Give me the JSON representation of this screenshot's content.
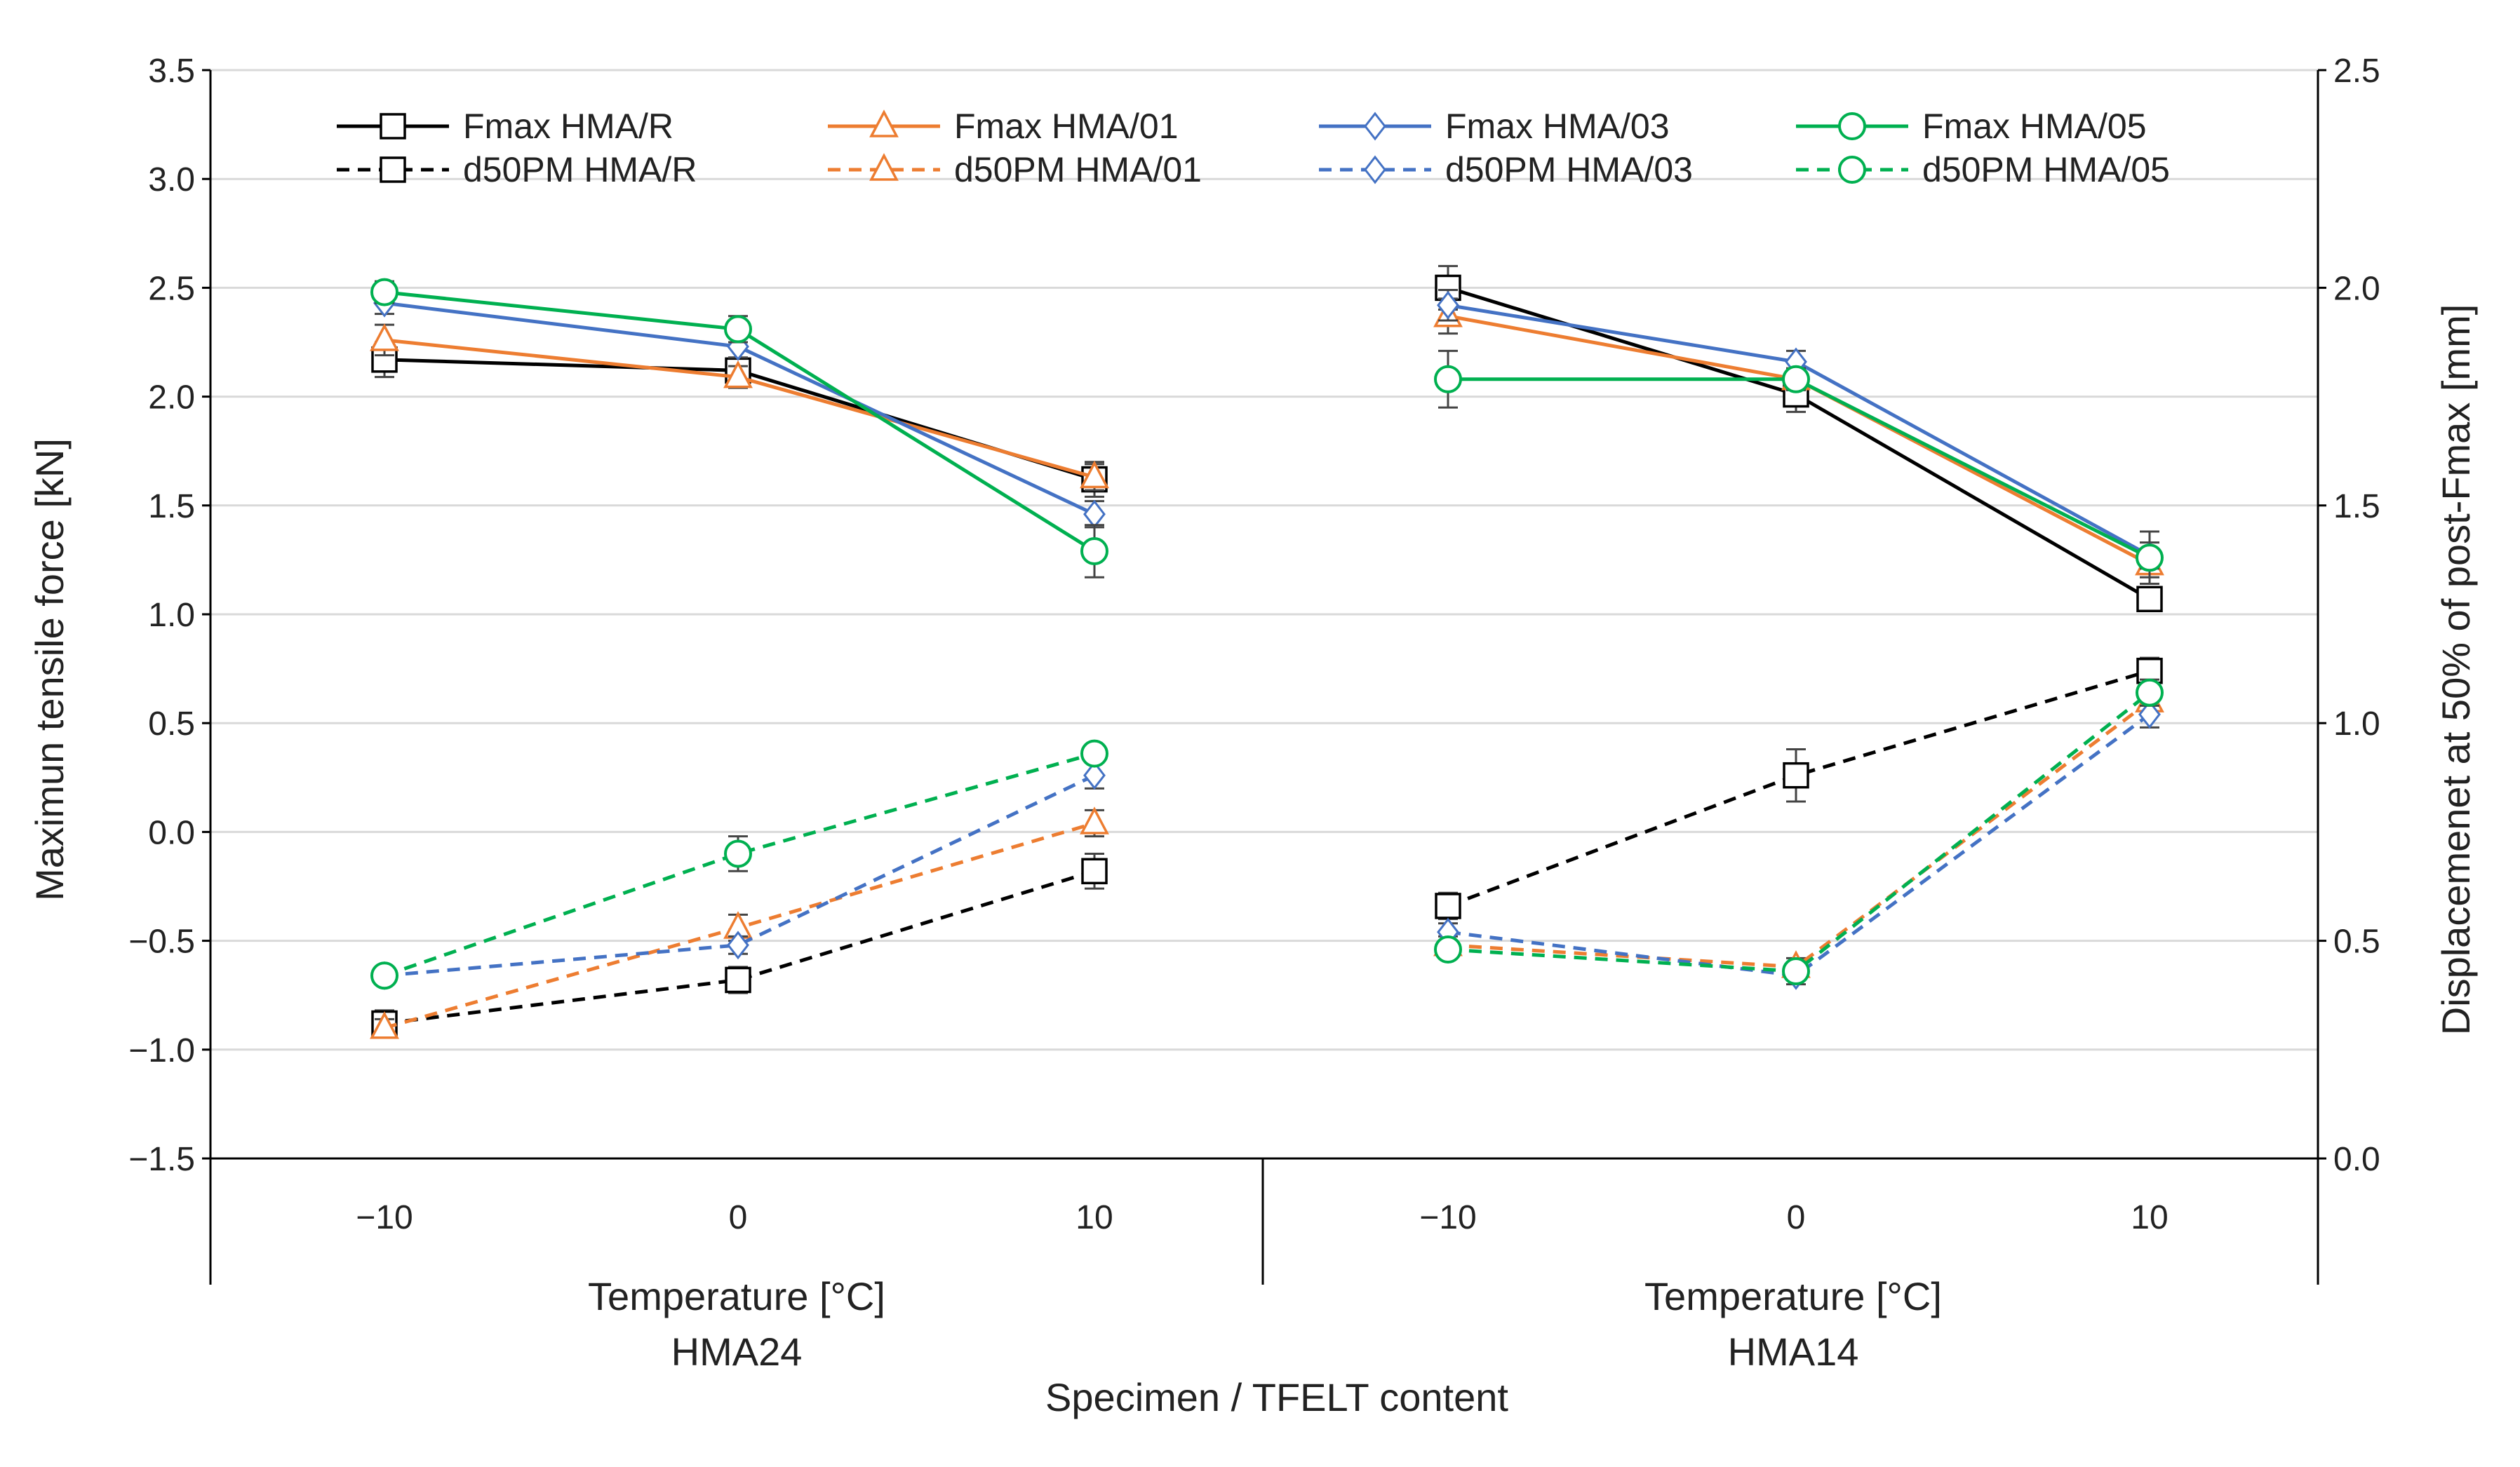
{
  "chart_data": {
    "type": "line",
    "title": "",
    "ylabel_left": "Maximun tensile force [kN]",
    "ylabel_right": "Displacemenet at 50% of post-Fmax [mm]",
    "xlabel": "Specimen / TFELT content",
    "ylim_left": [
      -1.5,
      3.5
    ],
    "ylim_right": [
      0.0,
      2.5
    ],
    "yticks_left": [
      "−1.5",
      "−1.0",
      "−0.5",
      "0.0",
      "0.5",
      "1.0",
      "1.5",
      "2.0",
      "2.5",
      "3.0",
      "3.5"
    ],
    "yticks_right": [
      "0.0",
      "0.5",
      "1.0",
      "1.5",
      "2.0",
      "2.5"
    ],
    "groups": [
      {
        "name": "HMA24",
        "axis_label": "Temperature [°C]",
        "categories": [
          "−10",
          "0",
          "10"
        ]
      },
      {
        "name": "HMA14",
        "axis_label": "Temperature [°C]",
        "categories": [
          "−10",
          "0",
          "10"
        ]
      }
    ],
    "grid": true,
    "legend_position": "top",
    "series": [
      {
        "name": "Fmax HMA/R",
        "axis": "left",
        "color": "#000000",
        "dash": false,
        "marker": "square",
        "values": [
          2.17,
          2.12,
          1.62,
          2.5,
          2.01,
          1.07
        ],
        "errors": [
          0.08,
          0.05,
          0.08,
          0.1,
          0.08,
          0.05
        ]
      },
      {
        "name": "Fmax HMA/01",
        "axis": "left",
        "color": "#ED7D31",
        "dash": false,
        "marker": "triangle",
        "values": [
          2.26,
          2.09,
          1.63,
          2.37,
          2.08,
          1.23
        ],
        "errors": [
          0.07,
          0.05,
          0.06,
          0.08,
          0.05,
          0.06
        ]
      },
      {
        "name": "Fmax HMA/03",
        "axis": "left",
        "color": "#4472C4",
        "dash": false,
        "marker": "diamond",
        "values": [
          2.43,
          2.23,
          1.46,
          2.42,
          2.16,
          1.27
        ],
        "errors": [
          0.05,
          0.05,
          0.06,
          0.07,
          0.05,
          0.06
        ]
      },
      {
        "name": "Fmax HMA/05",
        "axis": "left",
        "color": "#00B050",
        "dash": false,
        "marker": "circle",
        "values": [
          2.48,
          2.31,
          1.29,
          2.08,
          2.08,
          1.26
        ],
        "errors": [
          0.05,
          0.06,
          0.12,
          0.13,
          0.05,
          0.12
        ]
      },
      {
        "name": "d50PM HMA/R",
        "axis": "right",
        "color": "#000000",
        "dash": true,
        "marker": "square",
        "values": [
          0.31,
          0.41,
          0.66,
          0.58,
          0.88,
          1.12
        ],
        "errors": [
          0.03,
          0.03,
          0.04,
          0.03,
          0.06,
          0.03
        ]
      },
      {
        "name": "d50PM  HMA/01",
        "axis": "right",
        "color": "#ED7D31",
        "dash": true,
        "marker": "triangle",
        "values": [
          0.3,
          0.53,
          0.77,
          0.49,
          0.44,
          1.05
        ],
        "errors": [
          0.02,
          0.03,
          0.03,
          0.02,
          0.02,
          0.03
        ]
      },
      {
        "name": "d50PM  HMA/03",
        "axis": "right",
        "color": "#4472C4",
        "dash": true,
        "marker": "diamond",
        "values": [
          0.42,
          0.49,
          0.88,
          0.52,
          0.42,
          1.02
        ],
        "errors": [
          0.02,
          0.02,
          0.03,
          0.02,
          0.02,
          0.03
        ]
      },
      {
        "name": "d50PM  HMA/05",
        "axis": "right",
        "color": "#00B050",
        "dash": true,
        "marker": "circle",
        "values": [
          0.42,
          0.7,
          0.93,
          0.48,
          0.43,
          1.07
        ],
        "errors": [
          0.02,
          0.04,
          0.02,
          0.02,
          0.02,
          0.03
        ]
      }
    ]
  }
}
